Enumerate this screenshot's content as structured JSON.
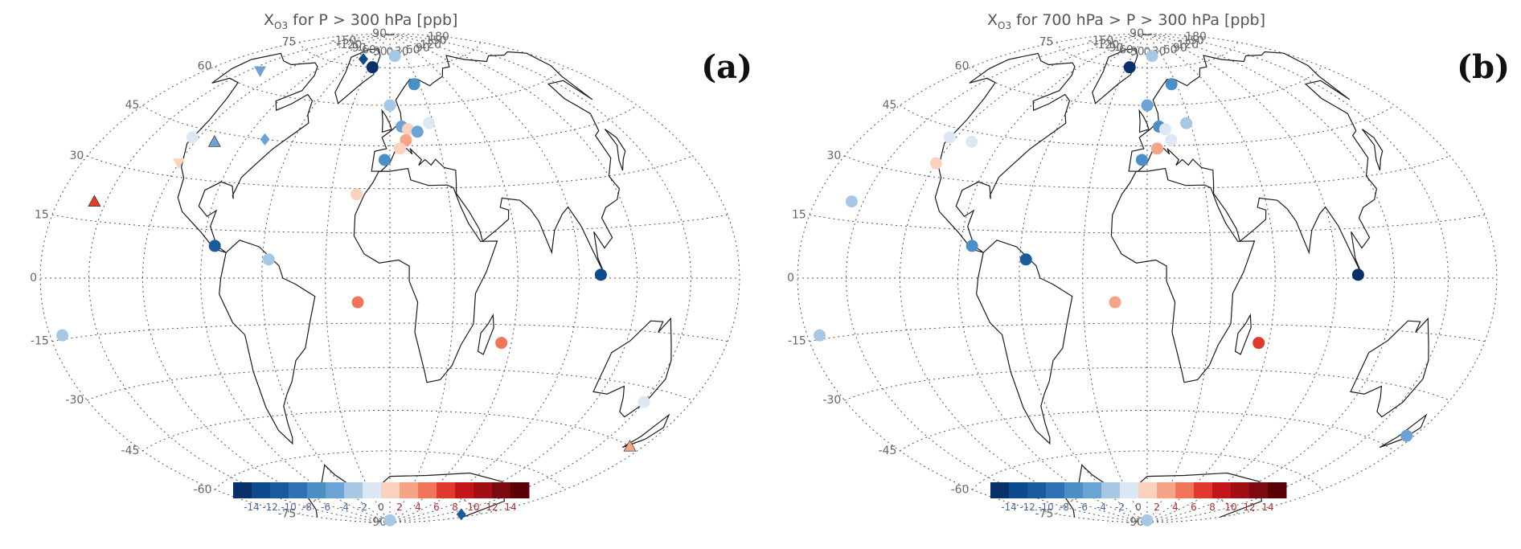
{
  "panels": [
    {
      "id": "a",
      "title_pre": "X",
      "title_sub": "O3",
      "title_post": " for P > 300 hPa [ppb]",
      "label": "(a)",
      "markers": [
        {
          "lon": -47,
          "lat": 78,
          "shape": "diamond",
          "color": "#0d4a8e"
        },
        {
          "lon": -25,
          "lat": 75,
          "shape": "circle",
          "color": "#08306b"
        },
        {
          "lon": 10,
          "lat": 80,
          "shape": "circle",
          "color": "#a6c8e4"
        },
        {
          "lon": 25,
          "lat": 68,
          "shape": "circle",
          "color": "#4a8fc6"
        },
        {
          "lon": 0,
          "lat": 60,
          "shape": "circle",
          "color": "#a6c8e4"
        },
        {
          "lon": 8,
          "lat": 52,
          "shape": "circle",
          "color": "#6ba4d4"
        },
        {
          "lon": 12,
          "lat": 51,
          "shape": "circle",
          "color": "#fbd2be"
        },
        {
          "lon": 18,
          "lat": 50,
          "shape": "circle",
          "color": "#6ba4d4"
        },
        {
          "lon": 27,
          "lat": 53,
          "shape": "circle",
          "color": "#dce8f4"
        },
        {
          "lon": 10,
          "lat": 47,
          "shape": "circle",
          "color": "#f5a487"
        },
        {
          "lon": 6,
          "lat": 44,
          "shape": "circle",
          "color": "#fbd2be"
        },
        {
          "lon": -3,
          "lat": 40,
          "shape": "circle",
          "color": "#4a8fc6"
        },
        {
          "lon": -17,
          "lat": 28,
          "shape": "circle",
          "color": "#fbd2be"
        },
        {
          "lon": -140,
          "lat": 65,
          "shape": "triangle-down",
          "color": "#6ba4d4"
        },
        {
          "lon": -124,
          "lat": 42,
          "shape": "circle",
          "color": "#dce8f4"
        },
        {
          "lon": -108,
          "lat": 42,
          "shape": "triangle-up",
          "color": "#6ba4d4"
        },
        {
          "lon": -78,
          "lat": 45,
          "shape": "diamond",
          "color": "#6ba4d4"
        },
        {
          "lon": -120,
          "lat": 34,
          "shape": "triangle-down",
          "color": "#fbd2be"
        },
        {
          "lon": -157,
          "lat": 20,
          "shape": "triangle-up",
          "color": "#e03a2c"
        },
        {
          "lon": -84,
          "lat": 10,
          "shape": "circle",
          "color": "#1b5a9c"
        },
        {
          "lon": -57,
          "lat": 6,
          "shape": "circle",
          "color": "#a6c8e4"
        },
        {
          "lon": 101,
          "lat": 1,
          "shape": "circle",
          "color": "#0d4a8e"
        },
        {
          "lon": -15,
          "lat": -8,
          "shape": "circle",
          "color": "#f0765a"
        },
        {
          "lon": 55,
          "lat": -21,
          "shape": "circle",
          "color": "#f0765a"
        },
        {
          "lon": -172,
          "lat": -14,
          "shape": "circle",
          "color": "#a6c8e4"
        },
        {
          "lon": 150,
          "lat": -34,
          "shape": "circle",
          "color": "#dce8f4"
        },
        {
          "lon": 171,
          "lat": -45,
          "shape": "triangle-up",
          "color": "#f5a487"
        },
        {
          "lon": 167,
          "lat": -78,
          "shape": "diamond",
          "color": "#1b5a9c"
        },
        {
          "lon": 0,
          "lat": -89,
          "shape": "circle",
          "color": "#a6c8e4"
        }
      ]
    },
    {
      "id": "b",
      "title_pre": "X",
      "title_sub": "O3",
      "title_post": " for 700 hPa > P > 300 hPa [ppb]",
      "label": "(b)",
      "markers": [
        {
          "lon": -25,
          "lat": 75,
          "shape": "circle",
          "color": "#08306b"
        },
        {
          "lon": 10,
          "lat": 80,
          "shape": "circle",
          "color": "#a6c8e4"
        },
        {
          "lon": 25,
          "lat": 68,
          "shape": "circle",
          "color": "#4a8fc6"
        },
        {
          "lon": 0,
          "lat": 60,
          "shape": "circle",
          "color": "#6ba4d4"
        },
        {
          "lon": 8,
          "lat": 52,
          "shape": "circle",
          "color": "#4a8fc6"
        },
        {
          "lon": 12,
          "lat": 51,
          "shape": "circle",
          "color": "#dce8f4"
        },
        {
          "lon": 27,
          "lat": 53,
          "shape": "circle",
          "color": "#a6c8e4"
        },
        {
          "lon": 15,
          "lat": 47,
          "shape": "circle",
          "color": "#dce8f4"
        },
        {
          "lon": 6,
          "lat": 44,
          "shape": "circle",
          "color": "#f5a487"
        },
        {
          "lon": -3,
          "lat": 40,
          "shape": "circle",
          "color": "#4a8fc6"
        },
        {
          "lon": -124,
          "lat": 42,
          "shape": "circle",
          "color": "#dce8f4"
        },
        {
          "lon": -108,
          "lat": 42,
          "shape": "circle",
          "color": "#dce8f4"
        },
        {
          "lon": -120,
          "lat": 34,
          "shape": "circle",
          "color": "#fbd2be"
        },
        {
          "lon": -157,
          "lat": 20,
          "shape": "circle",
          "color": "#a6c8e4"
        },
        {
          "lon": -84,
          "lat": 10,
          "shape": "circle",
          "color": "#4a8fc6"
        },
        {
          "lon": -57,
          "lat": 6,
          "shape": "circle",
          "color": "#1b5a9c"
        },
        {
          "lon": 101,
          "lat": 1,
          "shape": "circle",
          "color": "#08306b"
        },
        {
          "lon": -15,
          "lat": -8,
          "shape": "circle",
          "color": "#f5a487"
        },
        {
          "lon": 55,
          "lat": -21,
          "shape": "circle",
          "color": "#e03a2c"
        },
        {
          "lon": -172,
          "lat": -14,
          "shape": "circle",
          "color": "#a6c8e4"
        },
        {
          "lon": 175,
          "lat": -41,
          "shape": "circle",
          "color": "#6ba4d4"
        },
        {
          "lon": 0,
          "lat": -89,
          "shape": "circle",
          "color": "#a6c8e4"
        }
      ]
    }
  ],
  "lat_labels": [
    "90",
    "75",
    "60",
    "45",
    "30",
    "15",
    "0",
    "-15",
    "-30",
    "-45",
    "-60",
    "-75",
    "-90"
  ],
  "lat_values": [
    90,
    75,
    60,
    45,
    30,
    15,
    0,
    -15,
    -30,
    -45,
    -60,
    -75,
    -90
  ],
  "lon_labels": [
    "-150",
    "-120",
    "-90",
    "-60",
    "-30",
    "0",
    "30",
    "60",
    "90",
    "120",
    "150",
    "180"
  ],
  "lon_values": [
    -150,
    -120,
    -90,
    -60,
    -30,
    0,
    30,
    60,
    90,
    120,
    150,
    180
  ],
  "colorbar": {
    "colors": [
      "#08306b",
      "#0d4a8e",
      "#1b5a9c",
      "#2f73b6",
      "#4a8fc6",
      "#6ba4d4",
      "#a6c8e4",
      "#dce8f4",
      "#fbd2be",
      "#f5a487",
      "#f0765a",
      "#e03a2c",
      "#c3161b",
      "#a10f15",
      "#7a0a10",
      "#5c0008"
    ],
    "labels": [
      "-14",
      "-12",
      "-10",
      "-8",
      "-6",
      "-4",
      "-2",
      "0",
      "2",
      "4",
      "6",
      "8",
      "10",
      "12",
      "14"
    ]
  }
}
